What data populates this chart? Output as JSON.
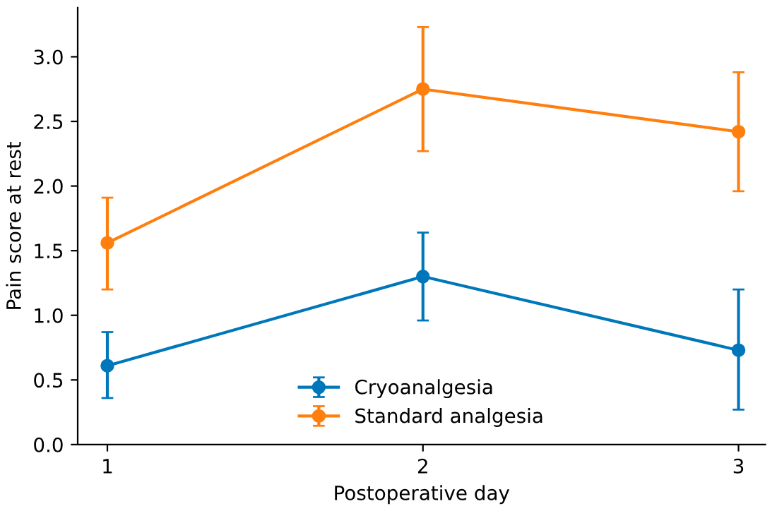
{
  "chart_data": {
    "type": "line",
    "xlabel": "Postoperative day",
    "ylabel": "Pain score at rest",
    "x": [
      1,
      2,
      3
    ],
    "xlim": [
      0.906,
      3.085
    ],
    "xticks": [
      1,
      2,
      3
    ],
    "ylim": [
      0,
      3.38
    ],
    "yticks": [
      {
        "value": 0,
        "label": "0.0"
      },
      0.5,
      {
        "value": 1,
        "label": "1.0"
      },
      1.5,
      {
        "value": 2,
        "label": "2.0"
      },
      2.5,
      {
        "value": 3,
        "label": "3.0"
      }
    ],
    "marker": "circle",
    "legend": "bottom",
    "grid": false,
    "series": [
      {
        "name": "Cryoanalgesia",
        "color": "#0077bb",
        "values": [
          0.61,
          1.3,
          0.73
        ],
        "errors": [
          [
            0.36,
            0.87
          ],
          [
            0.96,
            1.64
          ],
          [
            0.27,
            1.2
          ]
        ]
      },
      {
        "name": "Standard analgesia",
        "color": "#ff7f0e",
        "values": [
          1.56,
          2.75,
          2.42
        ],
        "errors": [
          [
            1.2,
            1.91
          ],
          [
            2.27,
            3.23
          ],
          [
            1.96,
            2.88
          ]
        ]
      }
    ]
  }
}
